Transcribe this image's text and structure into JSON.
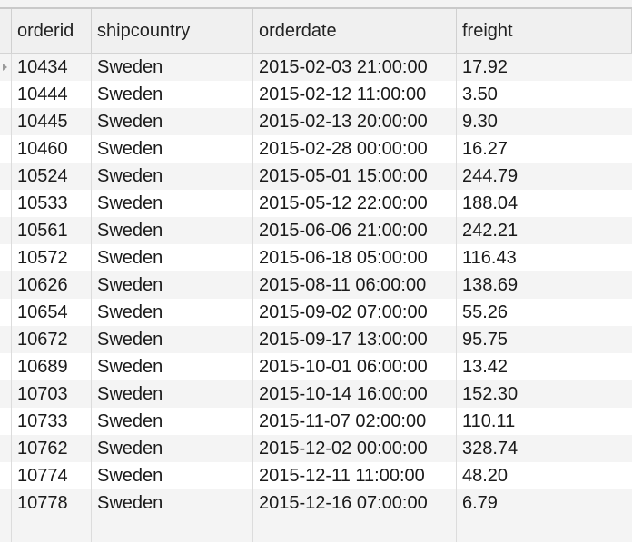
{
  "table": {
    "columns": [
      "orderid",
      "shipcountry",
      "orderdate",
      "freight"
    ],
    "rows": [
      {
        "orderid": "10434",
        "shipcountry": "Sweden",
        "orderdate": "2015-02-03 21:00:00",
        "freight": "17.92"
      },
      {
        "orderid": "10444",
        "shipcountry": "Sweden",
        "orderdate": "2015-02-12 11:00:00",
        "freight": "3.50"
      },
      {
        "orderid": "10445",
        "shipcountry": "Sweden",
        "orderdate": "2015-02-13 20:00:00",
        "freight": "9.30"
      },
      {
        "orderid": "10460",
        "shipcountry": "Sweden",
        "orderdate": "2015-02-28 00:00:00",
        "freight": "16.27"
      },
      {
        "orderid": "10524",
        "shipcountry": "Sweden",
        "orderdate": "2015-05-01 15:00:00",
        "freight": "244.79"
      },
      {
        "orderid": "10533",
        "shipcountry": "Sweden",
        "orderdate": "2015-05-12 22:00:00",
        "freight": "188.04"
      },
      {
        "orderid": "10561",
        "shipcountry": "Sweden",
        "orderdate": "2015-06-06 21:00:00",
        "freight": "242.21"
      },
      {
        "orderid": "10572",
        "shipcountry": "Sweden",
        "orderdate": "2015-06-18 05:00:00",
        "freight": "116.43"
      },
      {
        "orderid": "10626",
        "shipcountry": "Sweden",
        "orderdate": "2015-08-11 06:00:00",
        "freight": "138.69"
      },
      {
        "orderid": "10654",
        "shipcountry": "Sweden",
        "orderdate": "2015-09-02 07:00:00",
        "freight": "55.26"
      },
      {
        "orderid": "10672",
        "shipcountry": "Sweden",
        "orderdate": "2015-09-17 13:00:00",
        "freight": "95.75"
      },
      {
        "orderid": "10689",
        "shipcountry": "Sweden",
        "orderdate": "2015-10-01 06:00:00",
        "freight": "13.42"
      },
      {
        "orderid": "10703",
        "shipcountry": "Sweden",
        "orderdate": "2015-10-14 16:00:00",
        "freight": "152.30"
      },
      {
        "orderid": "10733",
        "shipcountry": "Sweden",
        "orderdate": "2015-11-07 02:00:00",
        "freight": "110.11"
      },
      {
        "orderid": "10762",
        "shipcountry": "Sweden",
        "orderdate": "2015-12-02 00:00:00",
        "freight": "328.74"
      },
      {
        "orderid": "10774",
        "shipcountry": "Sweden",
        "orderdate": "2015-12-11 11:00:00",
        "freight": "48.20"
      },
      {
        "orderid": "10778",
        "shipcountry": "Sweden",
        "orderdate": "2015-12-16 07:00:00",
        "freight": "6.79"
      }
    ],
    "current_row_index": 0
  }
}
